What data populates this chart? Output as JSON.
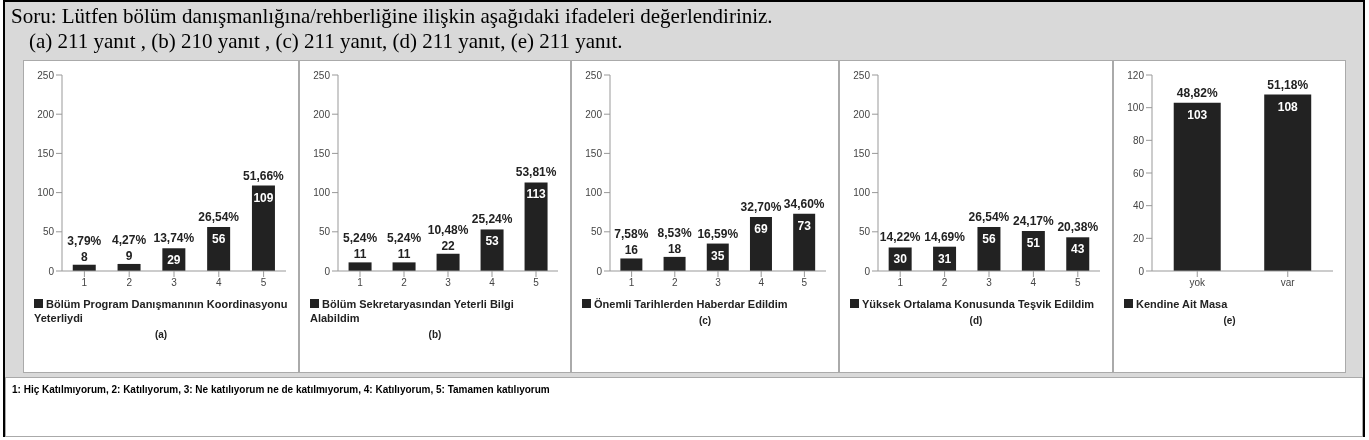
{
  "chart_data": [
    {
      "type": "other",
      "title": "Soru: Lütfen bölüm danışmanlığına/rehberliğine ilişkin aşağıdaki ifadeleri değerlendiriniz.",
      "subtitle": "(a) 211 yanıt , (b) 210 yanıt , (c) 211 yanıt, (d) 211 yanıt, (e) 211 yanıt."
    },
    {
      "type": "bar",
      "xlabel": "(a)",
      "categories": [
        "1",
        "2",
        "3",
        "4",
        "5"
      ],
      "series": [
        {
          "name": "Bölüm Program Danışmanının Koordinasyonu Yeterliydi",
          "color": "#222222",
          "values": [
            8,
            9,
            29,
            56,
            109
          ]
        }
      ],
      "value_labels": [
        "3,79%",
        "4,27%",
        "13,74%",
        "26,54%",
        "51,66%"
      ],
      "data_labels": true,
      "ylim": [
        0,
        250
      ],
      "yticks": [
        0,
        50,
        100,
        150,
        200,
        250
      ],
      "legend": "bottom"
    },
    {
      "type": "bar",
      "xlabel": "(b)",
      "categories": [
        "1",
        "2",
        "3",
        "4",
        "5"
      ],
      "series": [
        {
          "name": "Bölüm Sekretaryasından Yeterli Bilgi Alabildim",
          "color": "#222222",
          "values": [
            11,
            11,
            22,
            53,
            113
          ]
        }
      ],
      "value_labels": [
        "5,24%",
        "5,24%",
        "10,48%",
        "25,24%",
        "53,81%"
      ],
      "data_labels": true,
      "ylim": [
        0,
        250
      ],
      "yticks": [
        0,
        50,
        100,
        150,
        200,
        250
      ],
      "legend": "bottom"
    },
    {
      "type": "bar",
      "xlabel": "(c)",
      "categories": [
        "1",
        "2",
        "3",
        "4",
        "5"
      ],
      "series": [
        {
          "name": "Önemli Tarihlerden Haberdar Edildim",
          "color": "#222222",
          "values": [
            16,
            18,
            35,
            69,
            73
          ]
        }
      ],
      "value_labels": [
        "7,58%",
        "8,53%",
        "16,59%",
        "32,70%",
        "34,60%"
      ],
      "data_labels": true,
      "ylim": [
        0,
        250
      ],
      "yticks": [
        0,
        50,
        100,
        150,
        200,
        250
      ],
      "legend": "bottom"
    },
    {
      "type": "bar",
      "xlabel": "(d)",
      "categories": [
        "1",
        "2",
        "3",
        "4",
        "5"
      ],
      "series": [
        {
          "name": "Yüksek Ortalama Konusunda Teşvik Edildim",
          "color": "#222222",
          "values": [
            30,
            31,
            56,
            51,
            43
          ]
        }
      ],
      "value_labels": [
        "14,22%",
        "14,69%",
        "26,54%",
        "24,17%",
        "20,38%"
      ],
      "data_labels": true,
      "ylim": [
        0,
        250
      ],
      "yticks": [
        0,
        50,
        100,
        150,
        200,
        250
      ],
      "legend": "bottom"
    },
    {
      "type": "bar",
      "xlabel": "(e)",
      "categories": [
        "yok",
        "var"
      ],
      "series": [
        {
          "name": "Kendine Ait Masa",
          "color": "#222222",
          "values": [
            103,
            108
          ]
        }
      ],
      "value_labels": [
        "48,82%",
        "51,18%"
      ],
      "data_labels": true,
      "ylim": [
        0,
        120
      ],
      "yticks": [
        0,
        20,
        40,
        60,
        80,
        100,
        120
      ],
      "legend": "bottom"
    },
    {
      "type": "other",
      "annotations": [
        "1: Hiç Katılmıyorum,  2: Katılıyorum, 3: Ne katılıyorum ne de katılmıyorum, 4: Katılıyorum, 5: Tamamen katılıyorum"
      ]
    }
  ]
}
